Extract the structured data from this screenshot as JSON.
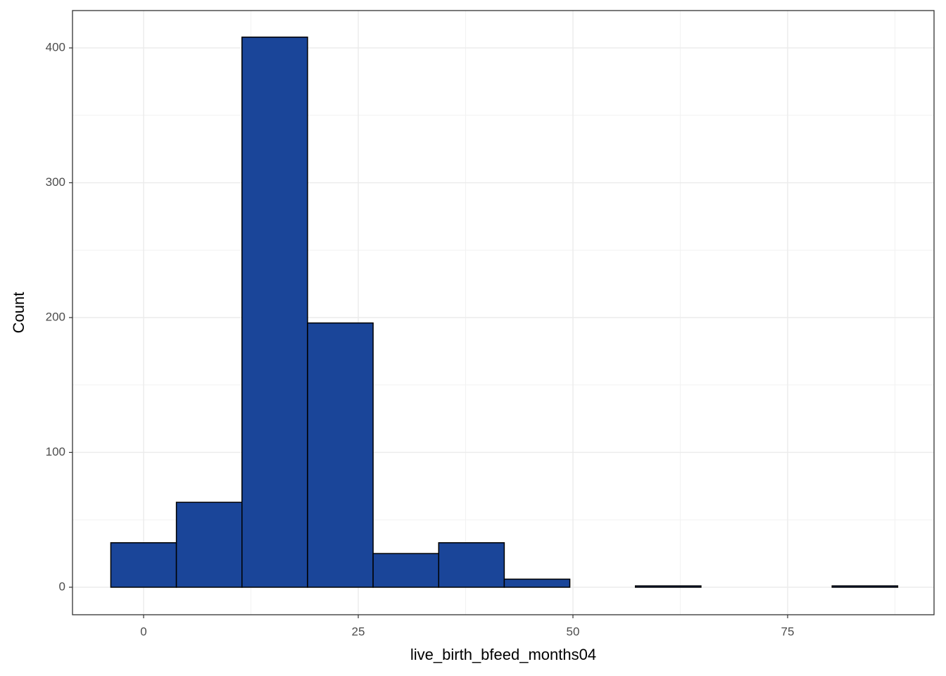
{
  "chart_data": {
    "type": "histogram",
    "x_label": "live_birth_bfeed_months04",
    "y_label": "Count",
    "bins": [
      -3.818,
      3.818,
      11.455,
      19.091,
      26.727,
      34.364,
      42,
      49.636,
      57.273,
      64.909,
      72.545,
      80.182,
      87.818
    ],
    "values": [
      33,
      63,
      408,
      196,
      25,
      33,
      6,
      0,
      1,
      0,
      0,
      1
    ],
    "color": "#1a4599",
    "edge_color": "#000000",
    "xlim": [
      -8.28,
      92.05
    ],
    "ylim": [
      -20.4,
      427.7
    ],
    "xticks": [
      0,
      25,
      50,
      75
    ],
    "yticks": [
      0,
      100,
      200,
      300,
      400
    ],
    "grid": true,
    "minor_grid": true
  }
}
